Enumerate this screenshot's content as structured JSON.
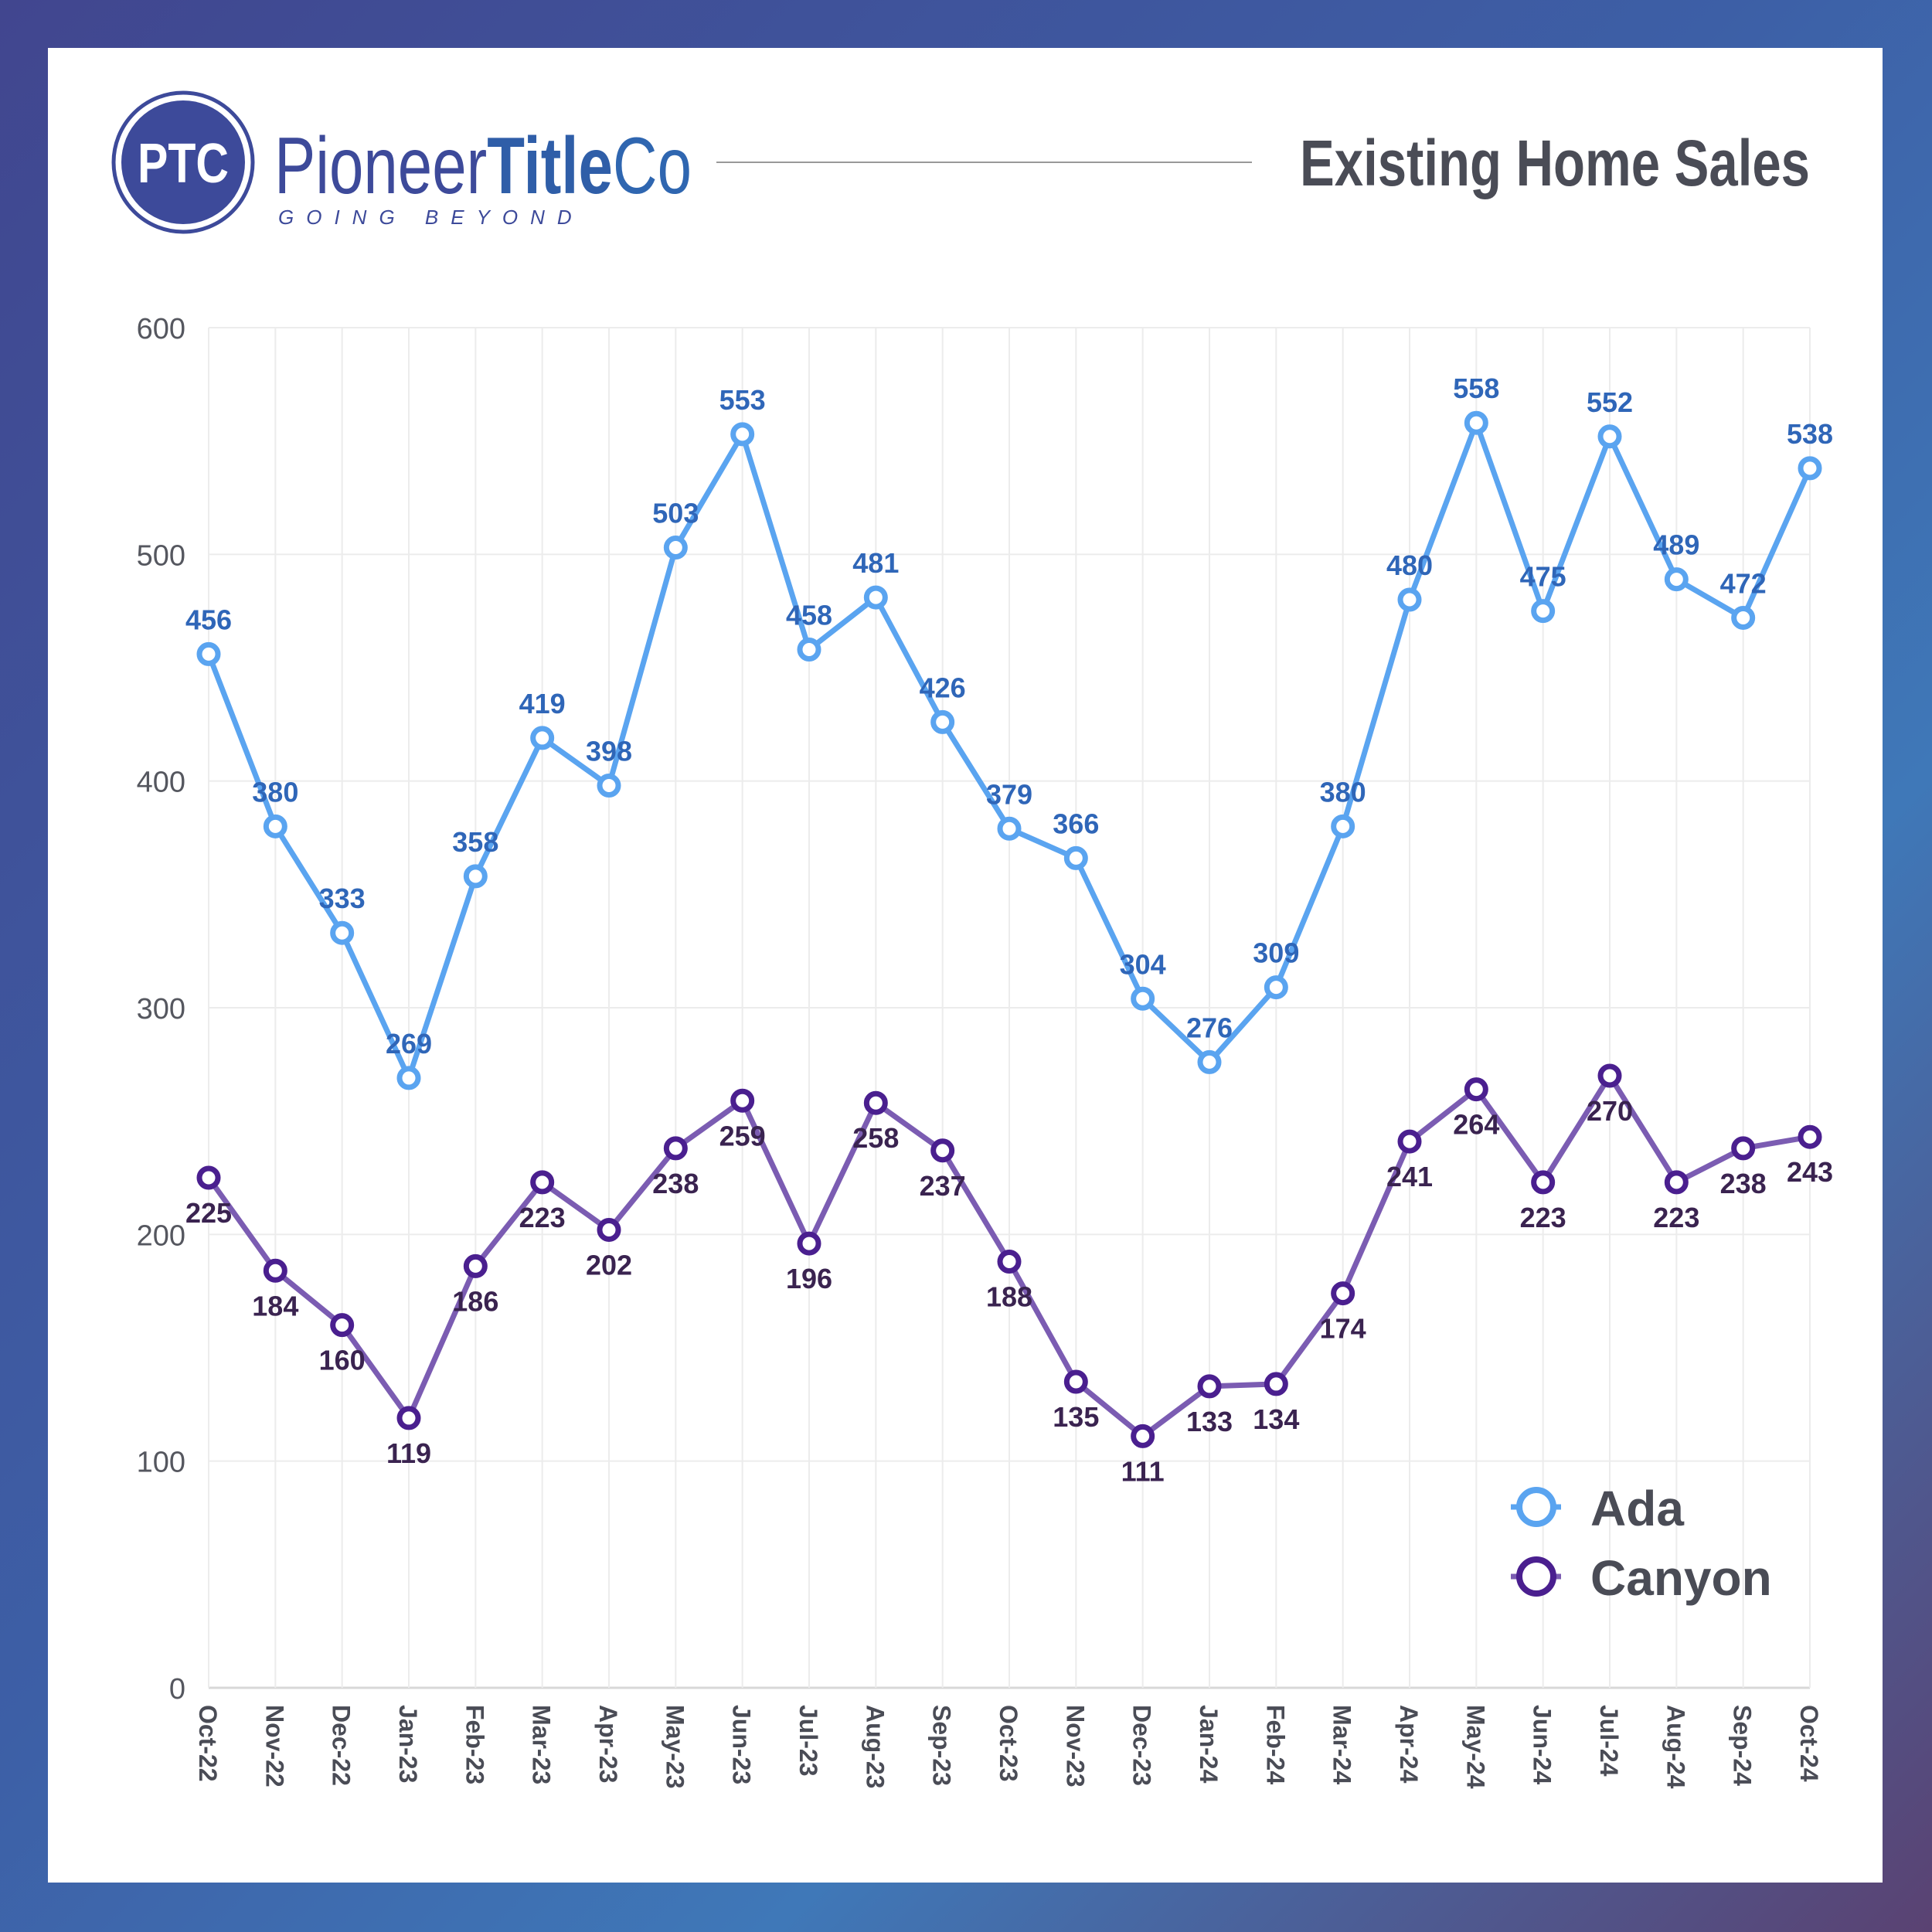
{
  "brand": {
    "logo_initials": "PTC",
    "name_regular": "Pioneer",
    "name_bold": "Title",
    "name_suffix": "Co",
    "tagline": "GOING BEYOND",
    "color": "#3d4a9a"
  },
  "chart_data": {
    "type": "line",
    "title": "Existing Home Sales",
    "xlabel": "",
    "ylabel": "",
    "ylim": [
      0,
      600
    ],
    "yticks": [
      0,
      100,
      200,
      300,
      400,
      500,
      600
    ],
    "grid": true,
    "legend_position": "bottom-right",
    "categories": [
      "Oct-22",
      "Nov-22",
      "Dec-22",
      "Jan-23",
      "Feb-23",
      "Mar-23",
      "Apr-23",
      "May-23",
      "Jun-23",
      "Jul-23",
      "Aug-23",
      "Sep-23",
      "Oct-23",
      "Nov-23",
      "Dec-23",
      "Jan-24",
      "Feb-24",
      "Mar-24",
      "Apr-24",
      "May-24",
      "Jun-24",
      "Jul-24",
      "Aug-24",
      "Sep-24",
      "Oct-24"
    ],
    "series": [
      {
        "name": "Ada",
        "color": "#5aa4f0",
        "label_color": "#2f66b8",
        "values": [
          456,
          380,
          333,
          269,
          358,
          419,
          398,
          503,
          553,
          458,
          481,
          426,
          379,
          366,
          304,
          276,
          309,
          380,
          480,
          558,
          475,
          552,
          489,
          472,
          538
        ]
      },
      {
        "name": "Canyon",
        "color": "#7b5cb2",
        "marker_color": "#4a1f8f",
        "label_color": "#3a2350",
        "values": [
          225,
          184,
          160,
          119,
          186,
          223,
          202,
          238,
          259,
          196,
          258,
          237,
          188,
          135,
          111,
          133,
          134,
          174,
          241,
          264,
          223,
          270,
          223,
          238,
          243
        ]
      }
    ]
  }
}
